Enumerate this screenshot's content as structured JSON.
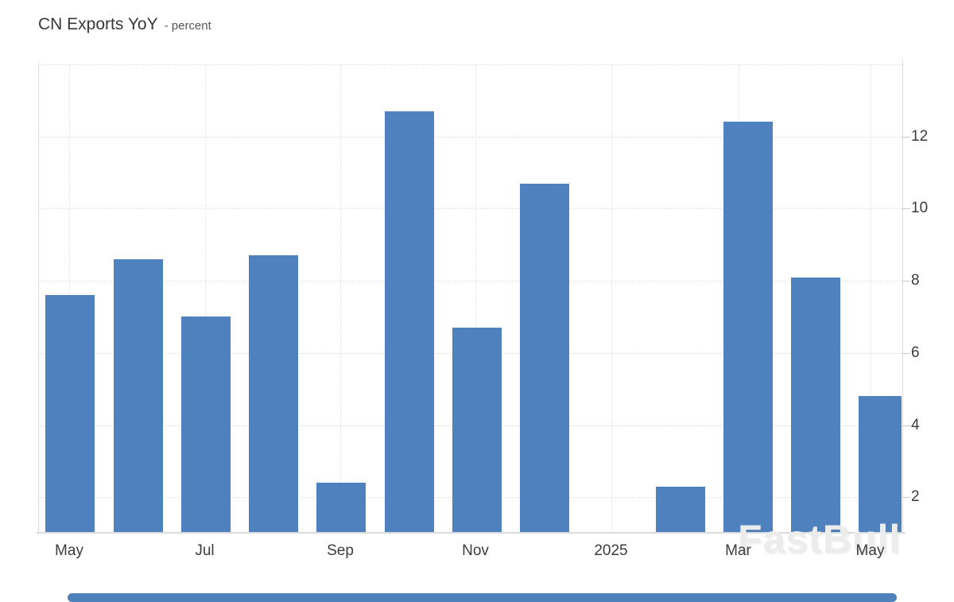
{
  "title": {
    "text": "CN Exports YoY",
    "subtitle": "- percent"
  },
  "watermark": {
    "text": "FastBull"
  },
  "colors": {
    "bar": "#4e81bd",
    "axis_line": "#d9d9d9",
    "bottom_axis_line": "#d8dce0",
    "grid_line": "#dedede",
    "tick_text": "#3c3c3c",
    "watermark": "#ececec",
    "scrollbar": "#4f81bd"
  },
  "chart_data": {
    "type": "bar",
    "title": "CN Exports YoY",
    "subtitle": "- percent",
    "ylabel": "percent",
    "x": [
      "May 2024",
      "Jun 2024",
      "Jul 2024",
      "Aug 2024",
      "Sep 2024",
      "Oct 2024",
      "Nov 2024",
      "Dec 2024",
      "Jan 2025",
      "Feb 2025",
      "Mar 2025",
      "Apr 2025",
      "May 2025"
    ],
    "values": [
      7.6,
      8.6,
      7.0,
      8.7,
      2.4,
      12.7,
      6.7,
      10.7,
      null,
      2.3,
      12.4,
      8.1,
      4.8
    ],
    "x_tick_labels": [
      "May",
      "Jul",
      "Sep",
      "Nov",
      "2025",
      "Mar",
      "May"
    ],
    "y_tick_labels": [
      12,
      10,
      8,
      6,
      4,
      2
    ],
    "y_gridline_values": [
      2,
      4,
      6,
      8,
      10,
      12,
      14
    ],
    "ylim": [
      0.95,
      14.1
    ],
    "grid": true,
    "legend": false,
    "y_axis_position": "right",
    "gap_note": "no bar for Jan 2025"
  }
}
